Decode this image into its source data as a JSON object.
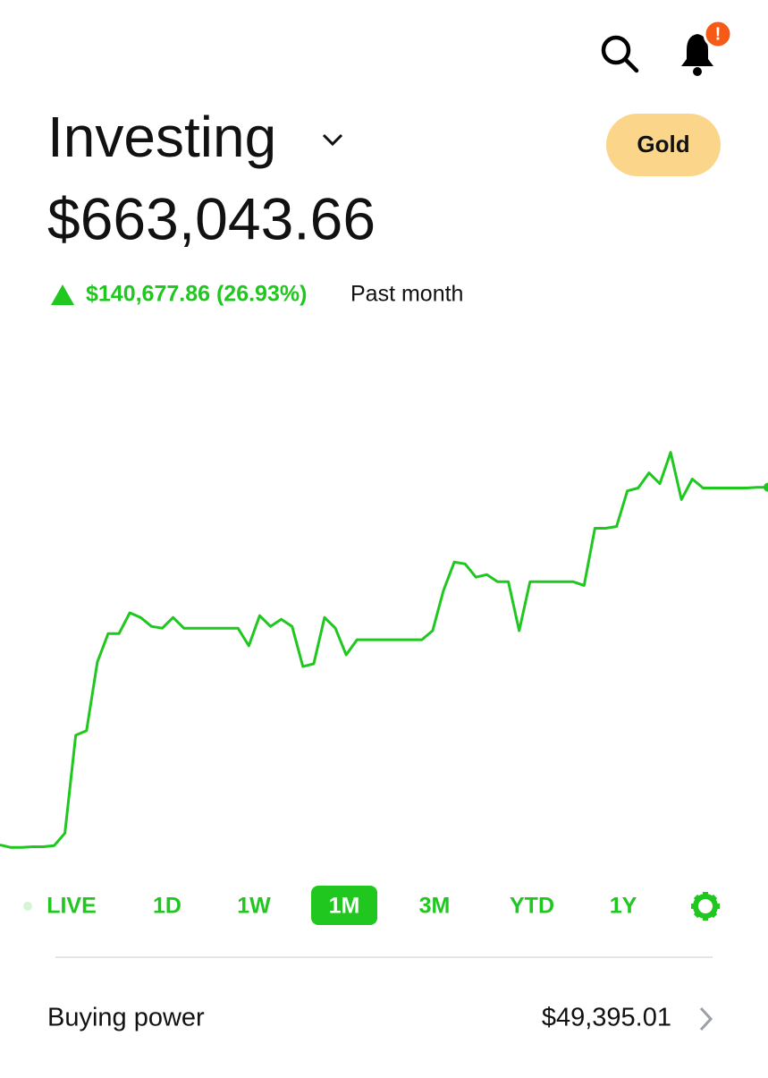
{
  "header": {
    "badge": "!",
    "account": "Investing",
    "membership": "Gold"
  },
  "portfolio": {
    "value": "$663,043.66",
    "change": "$140,677.86 (26.93%)",
    "period": "Past month"
  },
  "ranges": {
    "items": [
      "LIVE",
      "1D",
      "1W",
      "1M",
      "3M",
      "YTD",
      "1Y"
    ],
    "selected": "1M"
  },
  "buying_power": {
    "label": "Buying power",
    "value": "$49,395.01"
  },
  "chart_data": {
    "type": "line",
    "color": "#1fc71f",
    "ylim": [
      511000,
      717000
    ],
    "values": [
      523400,
      522400,
      522400,
      522700,
      522700,
      523100,
      528000,
      566200,
      568000,
      594800,
      605900,
      605900,
      614000,
      612200,
      608700,
      608000,
      612200,
      608000,
      608000,
      608000,
      608000,
      608000,
      608000,
      601100,
      612900,
      608700,
      611500,
      608700,
      593000,
      594100,
      612200,
      608000,
      597600,
      603500,
      603500,
      603500,
      603500,
      603500,
      603500,
      603500,
      607000,
      622700,
      633800,
      633100,
      627900,
      628900,
      626100,
      626100,
      607000,
      626100,
      626100,
      626100,
      626100,
      626100,
      624700,
      647000,
      647000,
      647700,
      661600,
      662700,
      668600,
      664400,
      676600,
      658200,
      666200,
      662700,
      662700,
      662700,
      662700,
      662700,
      663000,
      663000
    ]
  }
}
